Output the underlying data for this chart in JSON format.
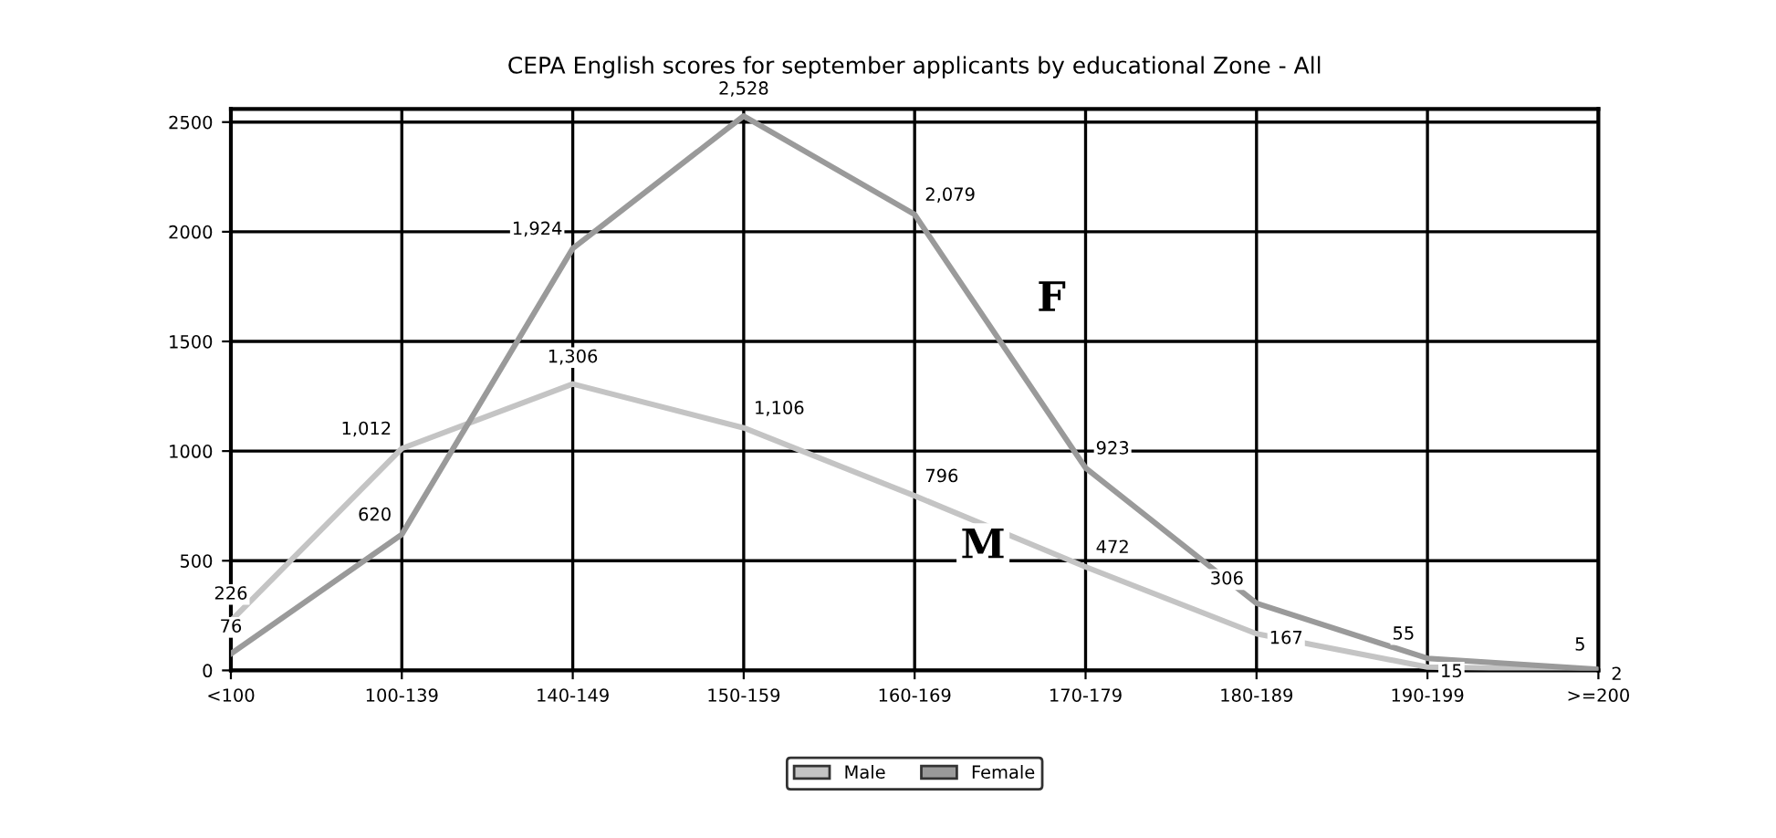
{
  "chart_data": {
    "type": "line",
    "title": "CEPA English scores for september applicants by educational Zone - All",
    "categories": [
      "<100",
      "100-139",
      "140-149",
      "150-159",
      "160-169",
      "170-179",
      "180-189",
      "190-199",
      ">=200"
    ],
    "series": [
      {
        "name": "Male",
        "color": "#c4c4c4",
        "values": [
          226,
          1012,
          1306,
          1106,
          796,
          472,
          167,
          15,
          2
        ],
        "value_labels": [
          "226",
          "1,012",
          "1,306",
          "1,106",
          "796",
          "472",
          "167",
          "15",
          "2"
        ]
      },
      {
        "name": "Female",
        "color": "#9a9a9a",
        "values": [
          76,
          620,
          1924,
          2528,
          2079,
          923,
          306,
          55,
          5
        ],
        "value_labels": [
          "76",
          "620",
          "1,924",
          "2,528",
          "2,079",
          "923",
          "306",
          "55",
          "5"
        ]
      }
    ],
    "ylim": [
      0,
      2560
    ],
    "yticks": [
      0,
      500,
      1000,
      1500,
      2000,
      2500
    ],
    "grid": true,
    "legend": "bottom",
    "marker": "none",
    "line_style": "solid",
    "annotations": [
      "F",
      "M"
    ]
  }
}
